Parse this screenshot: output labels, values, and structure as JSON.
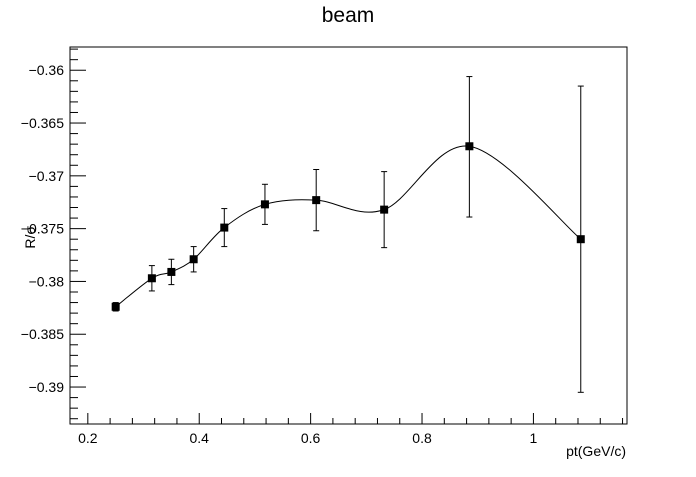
{
  "chart_data": {
    "type": "line",
    "title": "beam",
    "xlabel": "pt(GeV/c)",
    "ylabel": "R/σ",
    "xlim": [
      0.168,
      1.168
    ],
    "ylim": [
      -0.3935,
      -0.3578
    ],
    "x_ticks": [
      0.2,
      0.4,
      0.6,
      0.8,
      1.0
    ],
    "x_tick_labels": [
      "0.2",
      "0.4",
      "0.6",
      "0.8",
      "1"
    ],
    "y_ticks": [
      -0.39,
      -0.385,
      -0.38,
      -0.375,
      -0.37,
      -0.365,
      -0.36
    ],
    "y_tick_labels": [
      "−0.39",
      "−0.385",
      "−0.38",
      "−0.375",
      "−0.37",
      "−0.365",
      "−0.36"
    ],
    "grid": false,
    "legend": "none",
    "marker": "square",
    "colors": {
      "line": "#000000",
      "marker": "#000000",
      "frame": "#000000"
    },
    "series": [
      {
        "x": [
          0.25,
          0.315,
          0.35,
          0.39,
          0.445,
          0.518,
          0.61,
          0.732,
          0.885,
          1.085
        ],
        "y": [
          -0.3824,
          -0.3797,
          -0.3791,
          -0.3779,
          -0.3749,
          -0.3727,
          -0.3723,
          -0.3732,
          -0.3672,
          -0.376
        ],
        "err_low": [
          0.0004,
          0.0012,
          0.0012,
          0.0012,
          0.0018,
          0.0019,
          0.0029,
          0.0036,
          0.0067,
          0.0145
        ],
        "err_high": [
          0.0004,
          0.0012,
          0.0012,
          0.0012,
          0.0018,
          0.0019,
          0.0029,
          0.0036,
          0.0066,
          0.0145
        ]
      }
    ]
  }
}
